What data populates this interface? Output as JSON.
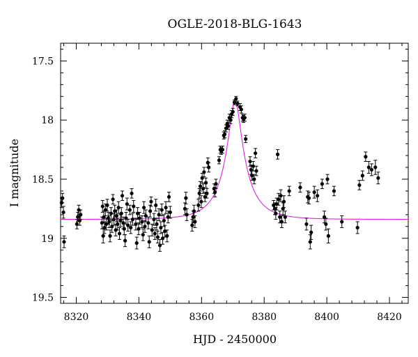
{
  "chart_data": {
    "type": "scatter",
    "title": "OGLE-2018-BLG-1643",
    "xlabel": "HJD - 2450000",
    "ylabel": "I magnitude",
    "xlim": [
      8315,
      8426
    ],
    "ylim": [
      19.55,
      17.35
    ],
    "y_inverted": true,
    "xticks": [
      8320,
      8340,
      8360,
      8380,
      8400,
      8420
    ],
    "xtick_labels": [
      "8320",
      "8340",
      "8360",
      "8380",
      "8400",
      "8420"
    ],
    "yticks": [
      17.5,
      18,
      18.5,
      19,
      19.5
    ],
    "ytick_labels": [
      "17.5",
      "18",
      "18.5",
      "19",
      "19.5"
    ],
    "grid": false,
    "colors": {
      "points": "#000000",
      "model": "#e020e0"
    },
    "model": {
      "name": "",
      "type": "microlensing",
      "t0": 8370.7,
      "baseline_mag": 18.84,
      "peak_mag": 17.84,
      "u0": 0.22,
      "tE": 8.5
    },
    "points": [
      {
        "x": 8315.3,
        "y": 18.7,
        "err": 0.04
      },
      {
        "x": 8315.6,
        "y": 18.66,
        "err": 0.04
      },
      {
        "x": 8315.9,
        "y": 18.78,
        "err": 0.05
      },
      {
        "x": 8316.1,
        "y": 19.03,
        "err": 0.05
      },
      {
        "x": 8320.2,
        "y": 18.88,
        "err": 0.04
      },
      {
        "x": 8320.5,
        "y": 18.82,
        "err": 0.04
      },
      {
        "x": 8320.8,
        "y": 18.76,
        "err": 0.04
      },
      {
        "x": 8321.1,
        "y": 18.85,
        "err": 0.04
      },
      {
        "x": 8321.4,
        "y": 18.8,
        "err": 0.04
      },
      {
        "x": 8328.2,
        "y": 18.87,
        "err": 0.05
      },
      {
        "x": 8328.4,
        "y": 18.73,
        "err": 0.05
      },
      {
        "x": 8328.6,
        "y": 18.98,
        "err": 0.06
      },
      {
        "x": 8328.8,
        "y": 18.82,
        "err": 0.05
      },
      {
        "x": 8329.0,
        "y": 18.91,
        "err": 0.05
      },
      {
        "x": 8329.3,
        "y": 18.76,
        "err": 0.05
      },
      {
        "x": 8329.6,
        "y": 18.88,
        "err": 0.05
      },
      {
        "x": 8329.9,
        "y": 18.72,
        "err": 0.05
      },
      {
        "x": 8330.2,
        "y": 18.83,
        "err": 0.05
      },
      {
        "x": 8330.5,
        "y": 18.86,
        "err": 0.05
      },
      {
        "x": 8330.8,
        "y": 18.98,
        "err": 0.05
      },
      {
        "x": 8331.1,
        "y": 18.79,
        "err": 0.05
      },
      {
        "x": 8331.4,
        "y": 18.9,
        "err": 0.05
      },
      {
        "x": 8331.7,
        "y": 18.67,
        "err": 0.04
      },
      {
        "x": 8332.0,
        "y": 18.84,
        "err": 0.05
      },
      {
        "x": 8332.3,
        "y": 18.77,
        "err": 0.05
      },
      {
        "x": 8332.6,
        "y": 18.93,
        "err": 0.05
      },
      {
        "x": 8332.9,
        "y": 18.81,
        "err": 0.05
      },
      {
        "x": 8333.2,
        "y": 18.88,
        "err": 0.05
      },
      {
        "x": 8333.5,
        "y": 18.74,
        "err": 0.05
      },
      {
        "x": 8333.8,
        "y": 18.96,
        "err": 0.05
      },
      {
        "x": 8334.1,
        "y": 18.85,
        "err": 0.05
      },
      {
        "x": 8334.4,
        "y": 18.79,
        "err": 0.05
      },
      {
        "x": 8334.7,
        "y": 18.64,
        "err": 0.04
      },
      {
        "x": 8335.0,
        "y": 18.87,
        "err": 0.05
      },
      {
        "x": 8335.3,
        "y": 18.92,
        "err": 0.05
      },
      {
        "x": 8335.6,
        "y": 19.02,
        "err": 0.05
      },
      {
        "x": 8335.9,
        "y": 18.83,
        "err": 0.05
      },
      {
        "x": 8336.2,
        "y": 18.71,
        "err": 0.05
      },
      {
        "x": 8336.5,
        "y": 18.89,
        "err": 0.05
      },
      {
        "x": 8337.1,
        "y": 18.76,
        "err": 0.04
      },
      {
        "x": 8337.4,
        "y": 18.91,
        "err": 0.05
      },
      {
        "x": 8337.7,
        "y": 18.62,
        "err": 0.04
      },
      {
        "x": 8338.0,
        "y": 18.84,
        "err": 0.05
      },
      {
        "x": 8338.3,
        "y": 18.73,
        "err": 0.05
      },
      {
        "x": 8339.0,
        "y": 18.88,
        "err": 0.05
      },
      {
        "x": 8339.3,
        "y": 19.04,
        "err": 0.05
      },
      {
        "x": 8339.6,
        "y": 18.79,
        "err": 0.05
      },
      {
        "x": 8339.9,
        "y": 18.92,
        "err": 0.05
      },
      {
        "x": 8340.2,
        "y": 18.83,
        "err": 0.05
      },
      {
        "x": 8341.0,
        "y": 18.86,
        "err": 0.05
      },
      {
        "x": 8341.3,
        "y": 18.97,
        "err": 0.05
      },
      {
        "x": 8341.6,
        "y": 18.74,
        "err": 0.05
      },
      {
        "x": 8341.9,
        "y": 18.9,
        "err": 0.05
      },
      {
        "x": 8342.2,
        "y": 18.81,
        "err": 0.05
      },
      {
        "x": 8343.0,
        "y": 18.87,
        "err": 0.05
      },
      {
        "x": 8343.3,
        "y": 19.03,
        "err": 0.05
      },
      {
        "x": 8343.6,
        "y": 18.77,
        "err": 0.05
      },
      {
        "x": 8343.9,
        "y": 18.69,
        "err": 0.04
      },
      {
        "x": 8344.2,
        "y": 18.93,
        "err": 0.05
      },
      {
        "x": 8344.8,
        "y": 18.84,
        "err": 0.05
      },
      {
        "x": 8345.1,
        "y": 18.96,
        "err": 0.05
      },
      {
        "x": 8345.4,
        "y": 18.72,
        "err": 0.05
      },
      {
        "x": 8345.7,
        "y": 18.88,
        "err": 0.05
      },
      {
        "x": 8346.0,
        "y": 18.99,
        "err": 0.05
      },
      {
        "x": 8346.4,
        "y": 18.8,
        "err": 0.05
      },
      {
        "x": 8346.7,
        "y": 19.06,
        "err": 0.05
      },
      {
        "x": 8347.0,
        "y": 18.91,
        "err": 0.05
      },
      {
        "x": 8347.3,
        "y": 18.76,
        "err": 0.05
      },
      {
        "x": 8347.6,
        "y": 19.0,
        "err": 0.05
      },
      {
        "x": 8348.0,
        "y": 18.85,
        "err": 0.05
      },
      {
        "x": 8348.3,
        "y": 18.94,
        "err": 0.05
      },
      {
        "x": 8348.6,
        "y": 18.74,
        "err": 0.05
      },
      {
        "x": 8349.0,
        "y": 18.98,
        "err": 0.05
      },
      {
        "x": 8349.3,
        "y": 18.82,
        "err": 0.05
      },
      {
        "x": 8349.6,
        "y": 18.65,
        "err": 0.04
      },
      {
        "x": 8350.0,
        "y": 18.78,
        "err": 0.05
      },
      {
        "x": 8354.7,
        "y": 18.75,
        "err": 0.05
      },
      {
        "x": 8355.0,
        "y": 18.66,
        "err": 0.05
      },
      {
        "x": 8355.3,
        "y": 18.8,
        "err": 0.05
      },
      {
        "x": 8357.0,
        "y": 18.89,
        "err": 0.05
      },
      {
        "x": 8357.3,
        "y": 18.82,
        "err": 0.05
      },
      {
        "x": 8357.6,
        "y": 18.77,
        "err": 0.05
      },
      {
        "x": 8357.9,
        "y": 18.86,
        "err": 0.05
      },
      {
        "x": 8359.0,
        "y": 18.72,
        "err": 0.05
      },
      {
        "x": 8359.3,
        "y": 18.62,
        "err": 0.04
      },
      {
        "x": 8359.6,
        "y": 18.56,
        "err": 0.04
      },
      {
        "x": 8359.9,
        "y": 18.69,
        "err": 0.05
      },
      {
        "x": 8360.2,
        "y": 18.49,
        "err": 0.04
      },
      {
        "x": 8360.5,
        "y": 18.58,
        "err": 0.04
      },
      {
        "x": 8360.8,
        "y": 18.44,
        "err": 0.04
      },
      {
        "x": 8361.1,
        "y": 18.65,
        "err": 0.04
      },
      {
        "x": 8361.4,
        "y": 18.53,
        "err": 0.04
      },
      {
        "x": 8361.7,
        "y": 18.62,
        "err": 0.04
      },
      {
        "x": 8362.0,
        "y": 18.36,
        "err": 0.04
      },
      {
        "x": 8362.3,
        "y": 18.4,
        "err": 0.04
      },
      {
        "x": 8364.0,
        "y": 18.58,
        "err": 0.04
      },
      {
        "x": 8364.3,
        "y": 18.61,
        "err": 0.04
      },
      {
        "x": 8364.6,
        "y": 18.54,
        "err": 0.04
      },
      {
        "x": 8365.6,
        "y": 18.34,
        "err": 0.03
      },
      {
        "x": 8366.0,
        "y": 18.25,
        "err": 0.03
      },
      {
        "x": 8366.3,
        "y": 18.26,
        "err": 0.03
      },
      {
        "x": 8366.7,
        "y": 18.25,
        "err": 0.03
      },
      {
        "x": 8367.1,
        "y": 18.13,
        "err": 0.03
      },
      {
        "x": 8367.4,
        "y": 18.12,
        "err": 0.03
      },
      {
        "x": 8367.8,
        "y": 18.07,
        "err": 0.03
      },
      {
        "x": 8368.2,
        "y": 18.03,
        "err": 0.03
      },
      {
        "x": 8368.5,
        "y": 18.05,
        "err": 0.03
      },
      {
        "x": 8368.9,
        "y": 17.98,
        "err": 0.03
      },
      {
        "x": 8369.3,
        "y": 18.0,
        "err": 0.03
      },
      {
        "x": 8369.6,
        "y": 17.95,
        "err": 0.03
      },
      {
        "x": 8370.0,
        "y": 17.93,
        "err": 0.03
      },
      {
        "x": 8370.5,
        "y": 17.85,
        "err": 0.02
      },
      {
        "x": 8371.0,
        "y": 17.82,
        "err": 0.02
      },
      {
        "x": 8371.5,
        "y": 17.86,
        "err": 0.02
      },
      {
        "x": 8372.3,
        "y": 17.89,
        "err": 0.03
      },
      {
        "x": 8372.7,
        "y": 17.91,
        "err": 0.03
      },
      {
        "x": 8373.1,
        "y": 17.98,
        "err": 0.03
      },
      {
        "x": 8373.4,
        "y": 17.99,
        "err": 0.03
      },
      {
        "x": 8373.8,
        "y": 17.98,
        "err": 0.03
      },
      {
        "x": 8374.1,
        "y": 18.16,
        "err": 0.03
      },
      {
        "x": 8375.5,
        "y": 18.35,
        "err": 0.04
      },
      {
        "x": 8375.8,
        "y": 18.42,
        "err": 0.04
      },
      {
        "x": 8376.1,
        "y": 18.47,
        "err": 0.04
      },
      {
        "x": 8376.5,
        "y": 18.39,
        "err": 0.04
      },
      {
        "x": 8376.8,
        "y": 18.5,
        "err": 0.04
      },
      {
        "x": 8377.2,
        "y": 18.28,
        "err": 0.04
      },
      {
        "x": 8377.5,
        "y": 18.43,
        "err": 0.04
      },
      {
        "x": 8383.0,
        "y": 18.72,
        "err": 0.04
      },
      {
        "x": 8383.4,
        "y": 18.75,
        "err": 0.05
      },
      {
        "x": 8383.7,
        "y": 18.79,
        "err": 0.05
      },
      {
        "x": 8384.0,
        "y": 18.71,
        "err": 0.05
      },
      {
        "x": 8384.3,
        "y": 18.29,
        "err": 0.04
      },
      {
        "x": 8384.6,
        "y": 18.67,
        "err": 0.05
      },
      {
        "x": 8385.0,
        "y": 18.82,
        "err": 0.05
      },
      {
        "x": 8385.3,
        "y": 18.64,
        "err": 0.05
      },
      {
        "x": 8385.6,
        "y": 18.86,
        "err": 0.05
      },
      {
        "x": 8386.0,
        "y": 18.75,
        "err": 0.05
      },
      {
        "x": 8386.3,
        "y": 18.69,
        "err": 0.05
      },
      {
        "x": 8386.7,
        "y": 18.82,
        "err": 0.05
      },
      {
        "x": 8388.0,
        "y": 18.6,
        "err": 0.04
      },
      {
        "x": 8391.5,
        "y": 18.57,
        "err": 0.04
      },
      {
        "x": 8393.5,
        "y": 18.88,
        "err": 0.05
      },
      {
        "x": 8393.9,
        "y": 18.65,
        "err": 0.05
      },
      {
        "x": 8394.3,
        "y": 18.66,
        "err": 0.05
      },
      {
        "x": 8394.7,
        "y": 19.03,
        "err": 0.06
      },
      {
        "x": 8395.0,
        "y": 18.95,
        "err": 0.06
      },
      {
        "x": 8396.0,
        "y": 18.61,
        "err": 0.05
      },
      {
        "x": 8397.0,
        "y": 18.64,
        "err": 0.05
      },
      {
        "x": 8398.5,
        "y": 18.54,
        "err": 0.04
      },
      {
        "x": 8399.2,
        "y": 18.82,
        "err": 0.05
      },
      {
        "x": 8399.7,
        "y": 18.88,
        "err": 0.05
      },
      {
        "x": 8400.2,
        "y": 18.5,
        "err": 0.04
      },
      {
        "x": 8400.5,
        "y": 18.98,
        "err": 0.06
      },
      {
        "x": 8402.3,
        "y": 18.6,
        "err": 0.04
      },
      {
        "x": 8404.8,
        "y": 18.86,
        "err": 0.05
      },
      {
        "x": 8409.8,
        "y": 18.91,
        "err": 0.05
      },
      {
        "x": 8410.4,
        "y": 18.55,
        "err": 0.04
      },
      {
        "x": 8411.4,
        "y": 18.47,
        "err": 0.04
      },
      {
        "x": 8412.4,
        "y": 18.31,
        "err": 0.04
      },
      {
        "x": 8413.4,
        "y": 18.4,
        "err": 0.05
      },
      {
        "x": 8414.3,
        "y": 18.42,
        "err": 0.05
      },
      {
        "x": 8415.5,
        "y": 18.4,
        "err": 0.06
      },
      {
        "x": 8416.4,
        "y": 18.49,
        "err": 0.05
      }
    ]
  }
}
